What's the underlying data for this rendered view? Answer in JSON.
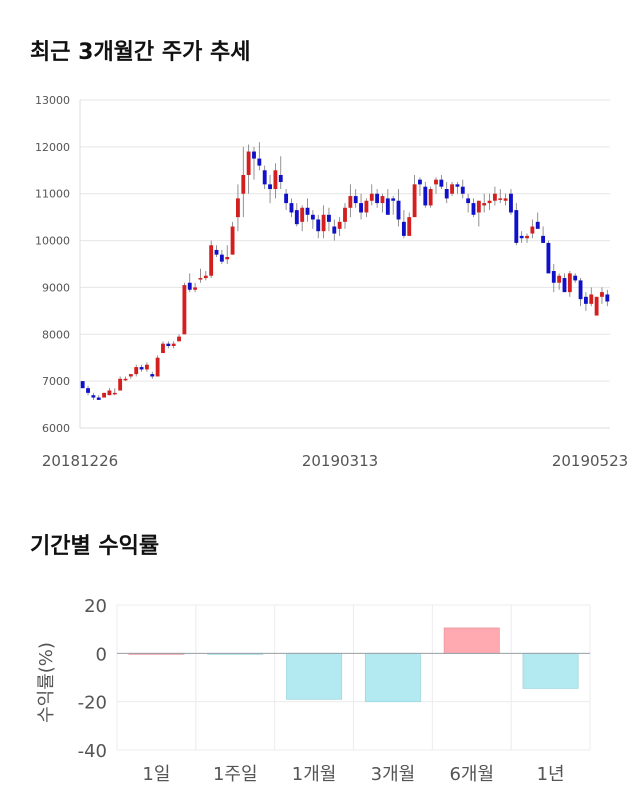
{
  "section1": {
    "title": "최근 3개월간 주가 추세"
  },
  "section2": {
    "title": "기간별 수익률"
  },
  "chart_data": [
    {
      "type": "candlestick",
      "title": "최근 3개월간 주가 추세",
      "ylim": [
        6000,
        13000
      ],
      "y_ticks": [
        "13000",
        "12000",
        "11000",
        "10000",
        "9000",
        "8000",
        "7000",
        "6000"
      ],
      "x_tick_labels": [
        "20181226",
        "20190313",
        "20190523"
      ],
      "grid": true,
      "up_color": "#d31f1f",
      "down_color": "#1010c8",
      "ohlc": [
        [
          7000,
          7000,
          6850,
          6850
        ],
        [
          6850,
          6900,
          6700,
          6750
        ],
        [
          6700,
          6750,
          6600,
          6650
        ],
        [
          6650,
          6700,
          6600,
          6600
        ],
        [
          6650,
          6750,
          6650,
          6750
        ],
        [
          6700,
          6850,
          6700,
          6800
        ],
        [
          6750,
          6850,
          6700,
          6750
        ],
        [
          6800,
          7100,
          6800,
          7050
        ],
        [
          7050,
          7100,
          7000,
          7050
        ],
        [
          7100,
          7150,
          7050,
          7150
        ],
        [
          7150,
          7350,
          7100,
          7300
        ],
        [
          7300,
          7350,
          7200,
          7250
        ],
        [
          7250,
          7400,
          7200,
          7350
        ],
        [
          7150,
          7200,
          7050,
          7100
        ],
        [
          7100,
          7550,
          7100,
          7500
        ],
        [
          7600,
          7850,
          7600,
          7800
        ],
        [
          7800,
          7850,
          7700,
          7750
        ],
        [
          7750,
          7850,
          7700,
          7800
        ],
        [
          7850,
          8000,
          7850,
          7950
        ],
        [
          8000,
          9100,
          8000,
          9050
        ],
        [
          9100,
          9300,
          8900,
          8950
        ],
        [
          8950,
          9100,
          8900,
          9000
        ],
        [
          9200,
          9400,
          9100,
          9200
        ],
        [
          9200,
          9350,
          9150,
          9250
        ],
        [
          9250,
          10000,
          9200,
          9900
        ],
        [
          9800,
          9900,
          9650,
          9700
        ],
        [
          9700,
          9800,
          9500,
          9550
        ],
        [
          9600,
          9900,
          9500,
          9650
        ],
        [
          9700,
          10400,
          9700,
          10300
        ],
        [
          10500,
          11200,
          10200,
          10900
        ],
        [
          11000,
          12000,
          10500,
          11400
        ],
        [
          11400,
          12050,
          11000,
          11900
        ],
        [
          11900,
          12000,
          11300,
          11750
        ],
        [
          11750,
          12100,
          11500,
          11600
        ],
        [
          11500,
          11600,
          11100,
          11200
        ],
        [
          11200,
          11400,
          10800,
          11100
        ],
        [
          11100,
          11650,
          10900,
          11500
        ],
        [
          11400,
          11800,
          11100,
          11250
        ],
        [
          11000,
          11100,
          10650,
          10800
        ],
        [
          10800,
          10900,
          10500,
          10600
        ],
        [
          10650,
          10800,
          10300,
          10350
        ],
        [
          10400,
          10750,
          10200,
          10700
        ],
        [
          10700,
          10900,
          10400,
          10550
        ],
        [
          10550,
          10650,
          10250,
          10450
        ],
        [
          10450,
          10550,
          10050,
          10200
        ],
        [
          10200,
          10750,
          10050,
          10550
        ],
        [
          10550,
          10700,
          10200,
          10400
        ],
        [
          10300,
          10450,
          10000,
          10150
        ],
        [
          10250,
          10500,
          10100,
          10400
        ],
        [
          10400,
          10800,
          10250,
          10700
        ],
        [
          10700,
          11200,
          10500,
          10950
        ],
        [
          10950,
          11100,
          10700,
          10800
        ],
        [
          10800,
          11000,
          10450,
          10600
        ],
        [
          10600,
          10900,
          10500,
          10850
        ],
        [
          10850,
          11200,
          10750,
          11000
        ],
        [
          11000,
          11100,
          10700,
          10800
        ],
        [
          10800,
          11000,
          10600,
          10950
        ],
        [
          10900,
          11100,
          10550,
          10550
        ],
        [
          10900,
          10950,
          10550,
          10850
        ],
        [
          10850,
          11100,
          10300,
          10450
        ],
        [
          10400,
          10650,
          10050,
          10100
        ],
        [
          10100,
          10600,
          10100,
          10500
        ],
        [
          10500,
          11400,
          10500,
          11200
        ],
        [
          11300,
          11350,
          10950,
          11200
        ],
        [
          11150,
          11250,
          10700,
          10750
        ],
        [
          10750,
          11150,
          10700,
          11100
        ],
        [
          11200,
          11350,
          11000,
          11300
        ],
        [
          11300,
          11400,
          11100,
          11150
        ],
        [
          11100,
          11250,
          10800,
          10900
        ],
        [
          11000,
          11250,
          10950,
          11200
        ],
        [
          11200,
          11250,
          11000,
          11150
        ],
        [
          11150,
          11300,
          10900,
          11000
        ],
        [
          10900,
          11000,
          10600,
          10800
        ],
        [
          10800,
          10900,
          10500,
          10550
        ],
        [
          10600,
          10850,
          10300,
          10850
        ],
        [
          10750,
          11000,
          10600,
          10800
        ],
        [
          10800,
          11000,
          10650,
          10850
        ],
        [
          10850,
          11150,
          10750,
          11000
        ],
        [
          10900,
          11100,
          10800,
          10900
        ],
        [
          10850,
          11000,
          10750,
          10900
        ],
        [
          11000,
          11100,
          10550,
          10600
        ],
        [
          10650,
          10800,
          9900,
          9950
        ],
        [
          10100,
          10200,
          9950,
          10050
        ],
        [
          10050,
          10150,
          9950,
          10100
        ],
        [
          10150,
          10450,
          10050,
          10300
        ],
        [
          10400,
          10600,
          10300,
          10250
        ],
        [
          10100,
          10300,
          9950,
          9950
        ],
        [
          9950,
          10000,
          9300,
          9300
        ],
        [
          9350,
          9500,
          8900,
          9100
        ],
        [
          9100,
          9300,
          8950,
          9250
        ],
        [
          9200,
          9300,
          8900,
          8900
        ],
        [
          8900,
          9350,
          8800,
          9300
        ],
        [
          9250,
          9300,
          9100,
          9150
        ],
        [
          9150,
          9200,
          8600,
          8750
        ],
        [
          8800,
          8900,
          8500,
          8650
        ],
        [
          8650,
          9000,
          8600,
          8850
        ],
        [
          8400,
          8800,
          8400,
          8800
        ],
        [
          8800,
          9000,
          8650,
          8900
        ],
        [
          8850,
          8950,
          8600,
          8700
        ]
      ]
    },
    {
      "type": "bar",
      "title": "기간별 수익률",
      "ylabel": "수익률(%)",
      "ylim": [
        -40,
        20
      ],
      "y_ticks": [
        "20",
        "0",
        "-20",
        "-40"
      ],
      "categories": [
        "1일",
        "1주일",
        "1개월",
        "3개월",
        "6개월",
        "1년"
      ],
      "values": [
        0.0,
        -0.4,
        -19.0,
        -20.0,
        10.5,
        -14.5
      ],
      "positive_color": "#ffa9b0",
      "negative_color": "#b3eaf2"
    }
  ]
}
